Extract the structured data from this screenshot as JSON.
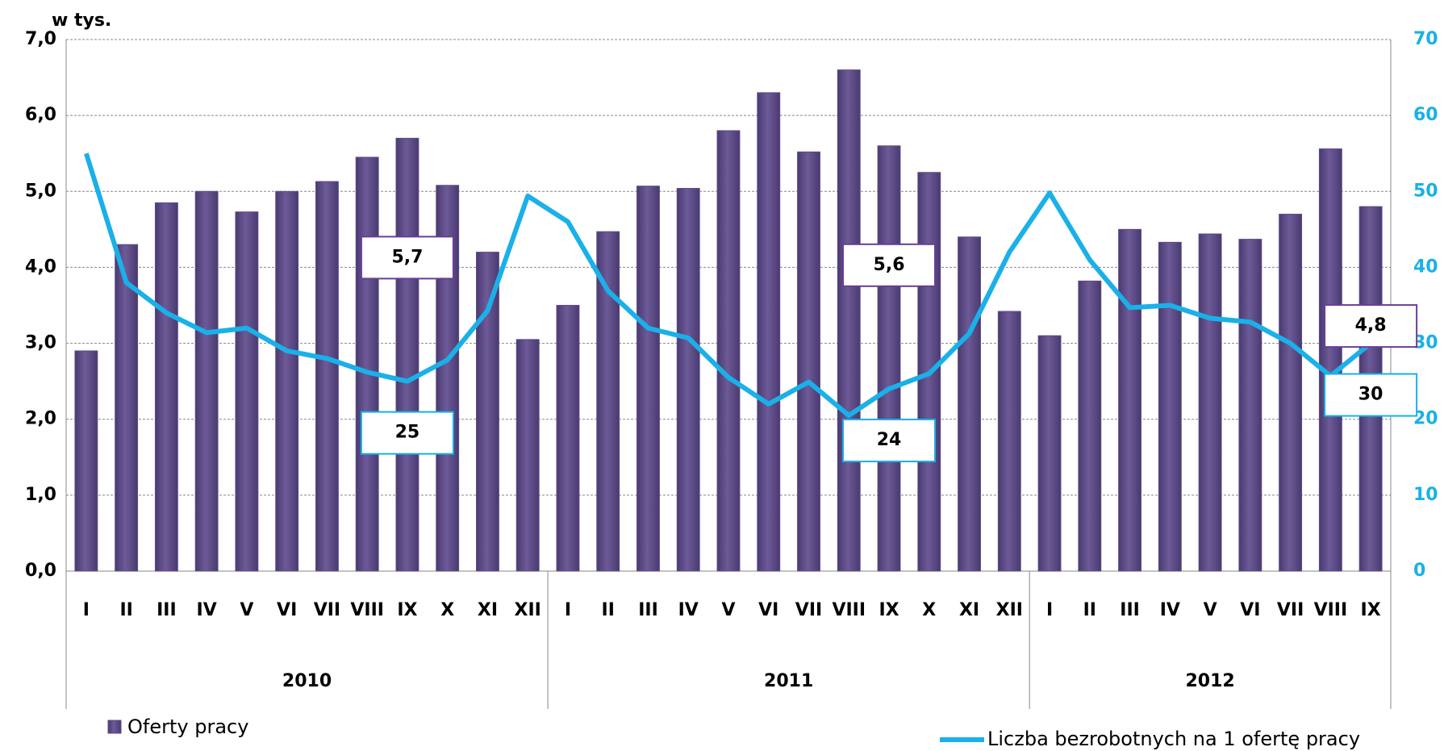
{
  "chart_data": {
    "type": "bar-line",
    "y_axis_label": "w tys.",
    "categories": [
      "I",
      "II",
      "III",
      "IV",
      "V",
      "VI",
      "VII",
      "VIII",
      "IX",
      "X",
      "XI",
      "XII",
      "I",
      "II",
      "III",
      "IV",
      "V",
      "VI",
      "VII",
      "VIII",
      "IX",
      "X",
      "XI",
      "XII",
      "I",
      "II",
      "III",
      "IV",
      "V",
      "VI",
      "VII",
      "VIII",
      "IX"
    ],
    "groups": [
      {
        "label": "2010",
        "count": 12
      },
      {
        "label": "2011",
        "count": 12
      },
      {
        "label": "2012",
        "count": 9
      }
    ],
    "series": [
      {
        "name": "Oferty pracy",
        "type": "bar",
        "color": "#5e4a87",
        "values": [
          2.9,
          4.3,
          4.85,
          5.0,
          4.73,
          5.0,
          5.13,
          5.45,
          5.7,
          5.08,
          4.2,
          3.05,
          3.5,
          4.47,
          5.07,
          5.04,
          5.8,
          6.3,
          5.52,
          6.6,
          5.6,
          5.25,
          4.4,
          3.42,
          3.1,
          3.82,
          4.5,
          4.33,
          4.44,
          4.37,
          4.7,
          5.56,
          4.8
        ],
        "value_labels": [
          null,
          null,
          null,
          null,
          null,
          null,
          null,
          null,
          "5,7",
          null,
          null,
          null,
          null,
          null,
          null,
          null,
          null,
          null,
          null,
          null,
          "5,6",
          null,
          null,
          null,
          null,
          null,
          null,
          null,
          null,
          null,
          null,
          null,
          "4,8"
        ]
      },
      {
        "name": "Liczba bezrobotnych na 1 ofertę pracy",
        "type": "line",
        "axis": "y2",
        "color": "#1ab0e8",
        "values": [
          55,
          38,
          34,
          31.4,
          32,
          29,
          28,
          26.2,
          25,
          27.8,
          34.3,
          49.4,
          46,
          36.9,
          32,
          30.7,
          25.5,
          22,
          24.9,
          20.5,
          24,
          26,
          31.3,
          42,
          49.8,
          41,
          34.7,
          35,
          33.3,
          32.8,
          30,
          25.7,
          30
        ],
        "value_labels": [
          null,
          null,
          null,
          null,
          null,
          null,
          null,
          null,
          "25",
          null,
          null,
          null,
          null,
          null,
          null,
          null,
          null,
          null,
          null,
          null,
          "24",
          null,
          null,
          null,
          null,
          null,
          null,
          null,
          null,
          null,
          null,
          null,
          "30"
        ]
      }
    ],
    "ylim": [
      0,
      7
    ],
    "yticks": [
      {
        "value": 0,
        "label": "0,0"
      },
      {
        "value": 1,
        "label": "1,0"
      },
      {
        "value": 2,
        "label": "2,0"
      },
      {
        "value": 3,
        "label": "3,0"
      },
      {
        "value": 4,
        "label": "4,0"
      },
      {
        "value": 5,
        "label": "5,0"
      },
      {
        "value": 6,
        "label": "6,0"
      },
      {
        "value": 7,
        "label": "7,0"
      }
    ],
    "y2lim": [
      0,
      70
    ],
    "y2ticks": [
      0,
      10,
      20,
      30,
      40,
      50,
      60,
      70
    ],
    "grid": true
  }
}
